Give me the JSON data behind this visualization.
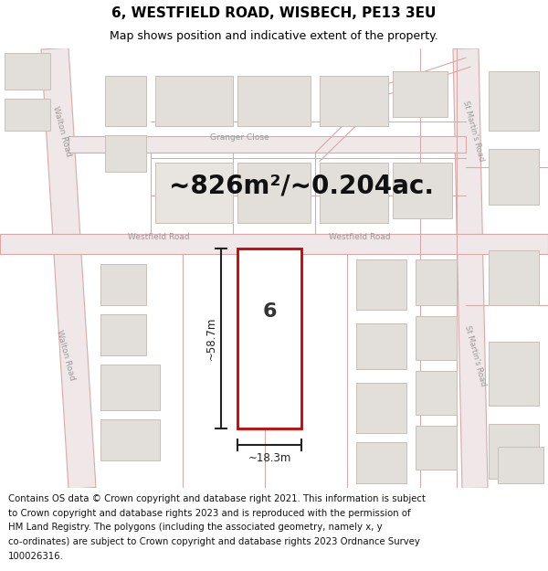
{
  "title": "6, WESTFIELD ROAD, WISBECH, PE13 3EU",
  "subtitle": "Map shows position and indicative extent of the property.",
  "area_text": "~826m²/~0.204ac.",
  "dim_width": "~18.3m",
  "dim_height": "~58.7m",
  "property_number": "6",
  "footer_lines": [
    "Contains OS data © Crown copyright and database right 2021. This information is subject",
    "to Crown copyright and database rights 2023 and is reproduced with the permission of",
    "HM Land Registry. The polygons (including the associated geometry, namely x, y",
    "co-ordinates) are subject to Crown copyright and database rights 2023 Ordnance Survey",
    "100026316."
  ],
  "map_bg": "#f7f5f2",
  "road_fill": "#f0e8e8",
  "road_line": "#d9a8a8",
  "building_fill": "#e2deda",
  "building_edge": "#c8c0b8",
  "property_fill": "#ffffff",
  "property_edge": "#cc0000",
  "label_color": "#999999",
  "dim_color": "#222222"
}
